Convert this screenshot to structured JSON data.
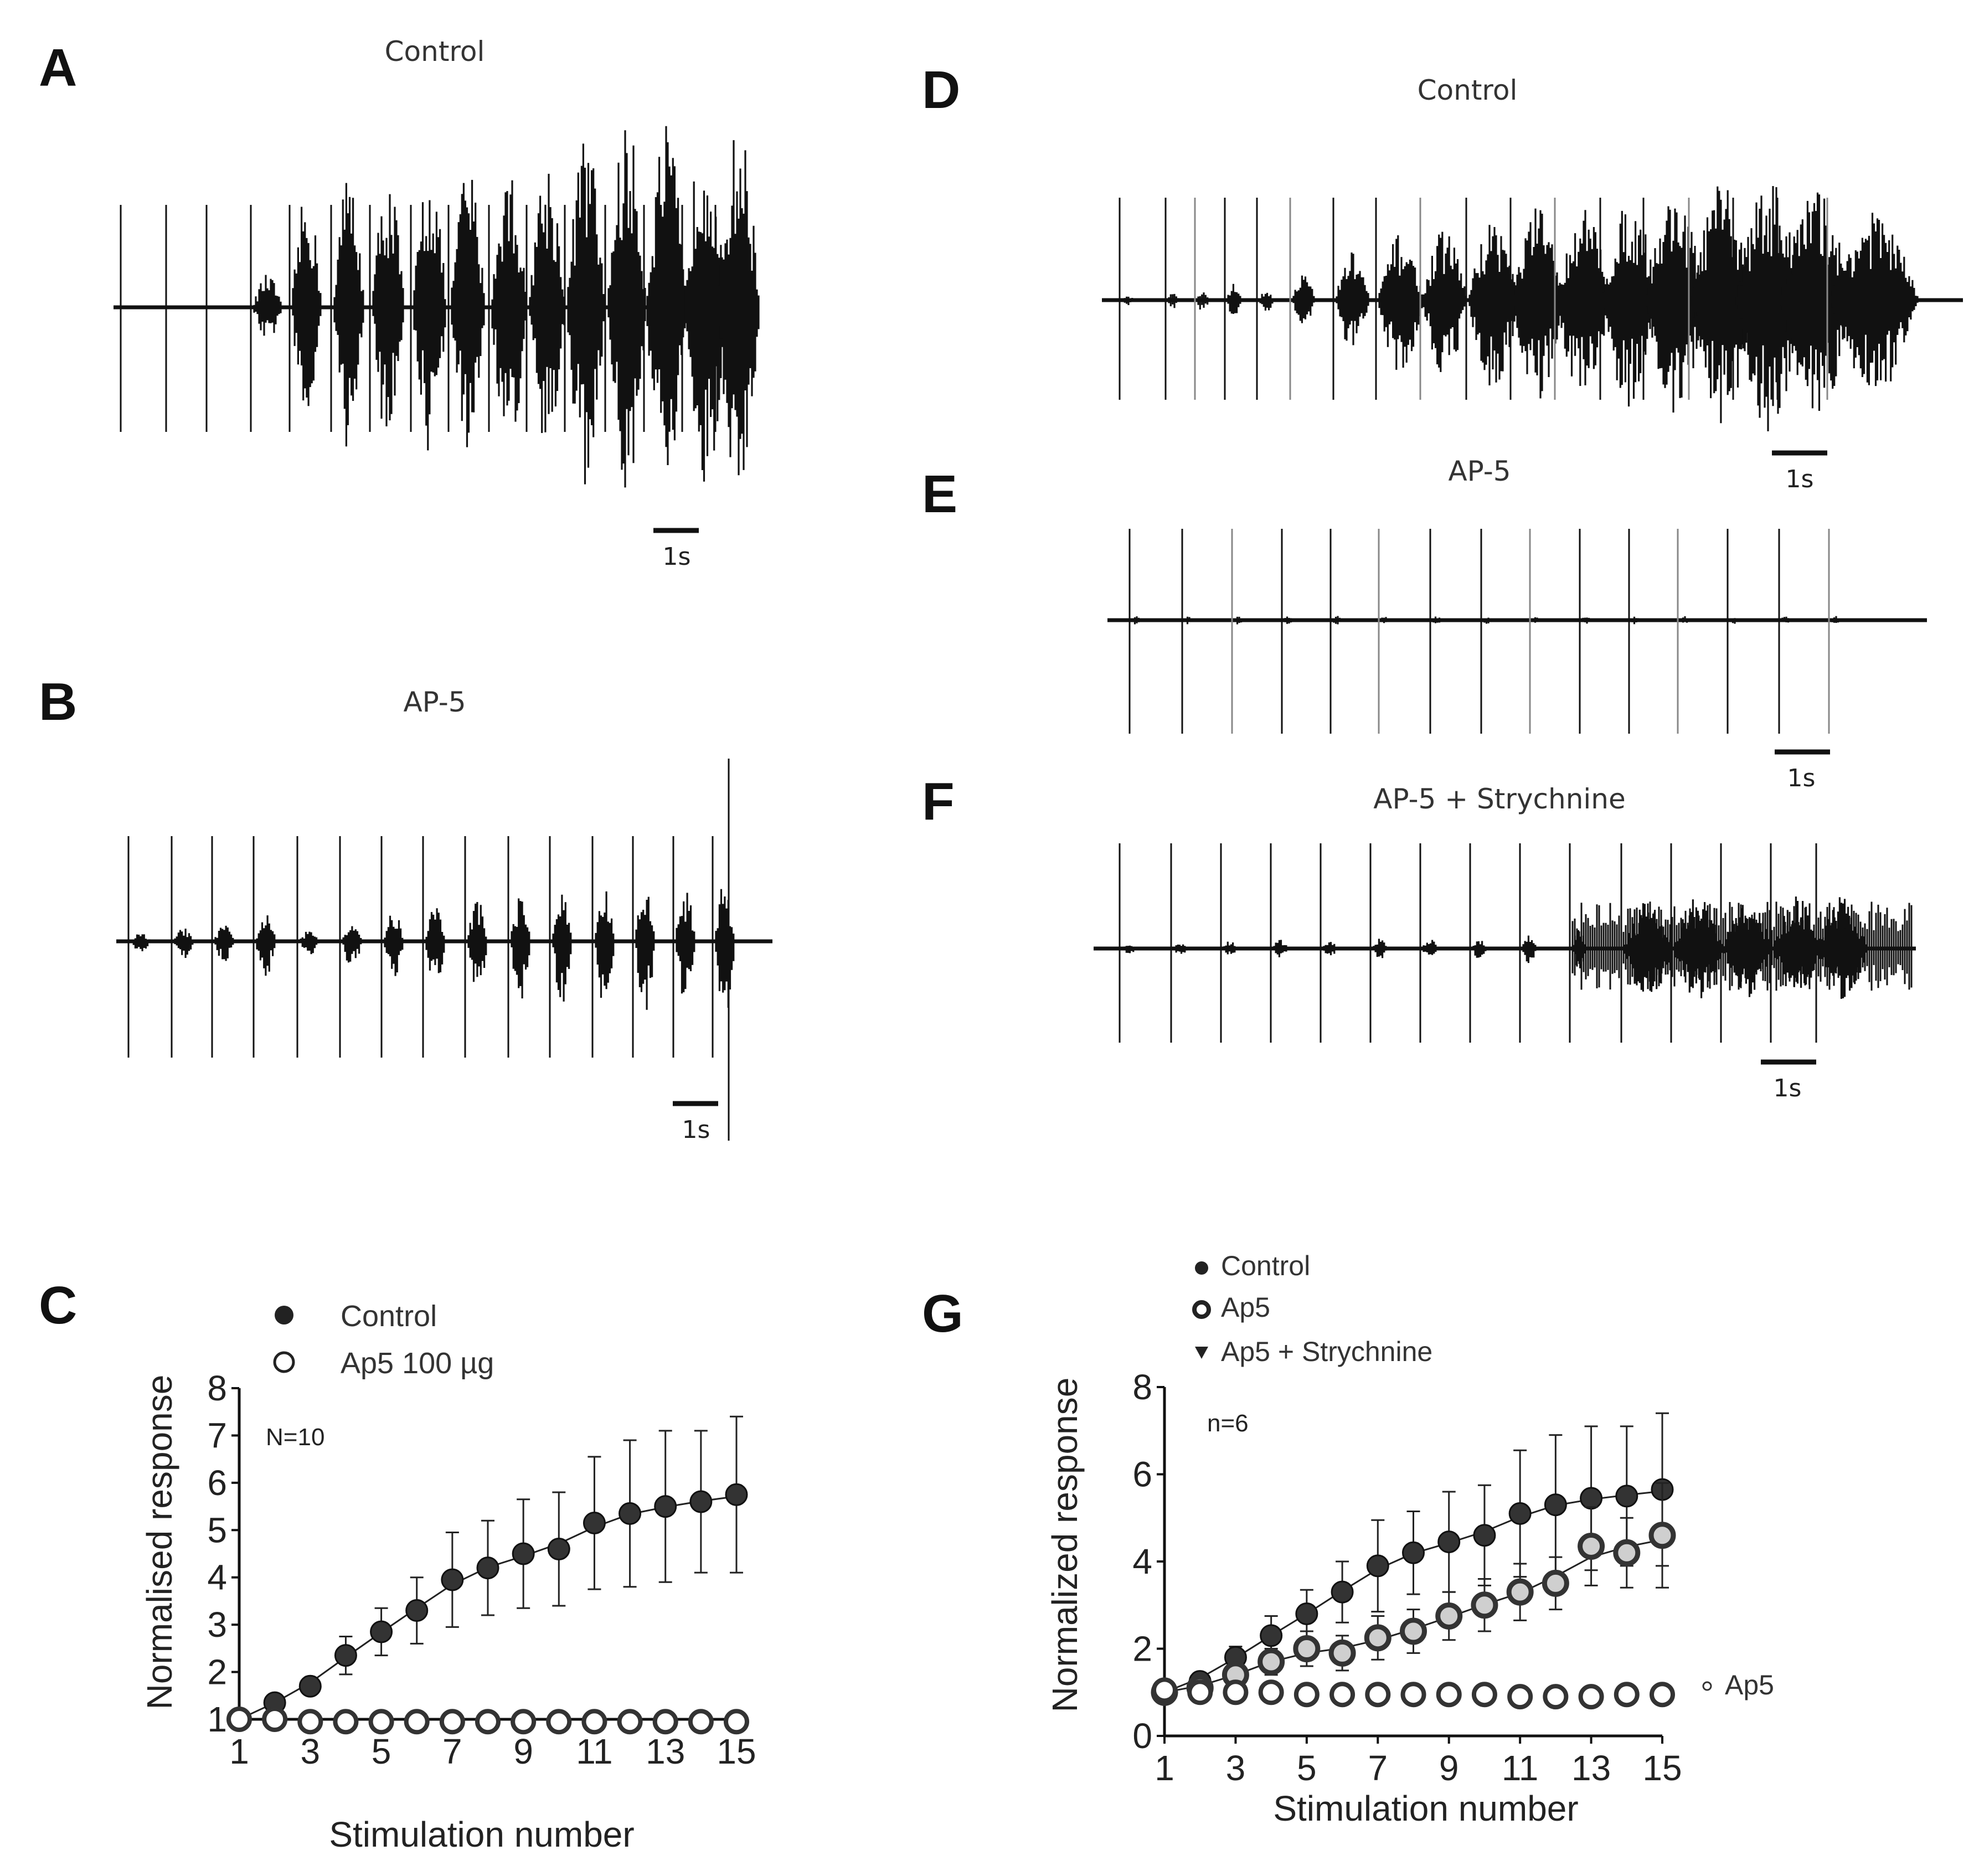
{
  "panels": {
    "A": {
      "letter": "A",
      "title": "Control",
      "scale": "1s"
    },
    "B": {
      "letter": "B",
      "title": "AP-5",
      "scale": "1s"
    },
    "D": {
      "letter": "D",
      "title": "Control",
      "scale": "1s"
    },
    "E": {
      "letter": "E",
      "title": "AP-5",
      "scale": "1s"
    },
    "F": {
      "letter": "F",
      "title": "AP-5 + Strychnine",
      "scale": "1s"
    },
    "C": {
      "letter": "C"
    },
    "G": {
      "letter": "G"
    }
  },
  "colors": {
    "ink": "#111111",
    "marker_fill": "#333333",
    "open_marker_fill": "#ffffff",
    "gray_marker_fill": "#cfcfcf"
  },
  "chart_data": [
    {
      "id": "C",
      "type": "scatter",
      "title": "",
      "xlabel": "Stimulation number",
      "ylabel": "Normalised response",
      "xlim": [
        1,
        15
      ],
      "ylim": [
        1,
        8
      ],
      "xticks": [
        "1",
        "3",
        "5",
        "7",
        "9",
        "11",
        "13",
        "15"
      ],
      "yticks": [
        "1",
        "2",
        "3",
        "4",
        "5",
        "6",
        "7",
        "8"
      ],
      "annotation": "N=10",
      "legend": {
        "position": "top",
        "entries": [
          {
            "label": "Control",
            "marker": "filled-circle"
          },
          {
            "label": "Ap5 100 µg",
            "marker": "open-circle"
          }
        ]
      },
      "series": [
        {
          "name": "Control",
          "marker": "filled-circle",
          "fit_curve": true,
          "x": [
            1,
            2,
            3,
            4,
            5,
            6,
            7,
            8,
            9,
            10,
            11,
            12,
            13,
            14,
            15
          ],
          "values": [
            1.0,
            1.35,
            1.7,
            2.35,
            2.85,
            3.3,
            3.95,
            4.2,
            4.5,
            4.6,
            5.15,
            5.35,
            5.5,
            5.6,
            5.75
          ],
          "error": [
            0,
            0.1,
            0.15,
            0.4,
            0.5,
            0.7,
            1.0,
            1.0,
            1.15,
            1.2,
            1.4,
            1.55,
            1.6,
            1.5,
            1.65
          ]
        },
        {
          "name": "Ap5 100 µg",
          "marker": "open-circle",
          "x": [
            1,
            2,
            3,
            4,
            5,
            6,
            7,
            8,
            9,
            10,
            11,
            12,
            13,
            14,
            15
          ],
          "values": [
            1.0,
            1.0,
            0.95,
            0.95,
            0.95,
            0.95,
            0.95,
            0.95,
            0.95,
            0.95,
            0.95,
            0.95,
            0.95,
            0.95,
            0.95
          ],
          "error": [
            0,
            0,
            0,
            0,
            0,
            0,
            0,
            0,
            0,
            0,
            0,
            0,
            0,
            0,
            0
          ]
        }
      ]
    },
    {
      "id": "G",
      "type": "scatter",
      "title": "",
      "xlabel": "Stimulation number",
      "ylabel": "Normalized response",
      "xlim": [
        1,
        15
      ],
      "ylim": [
        0,
        8
      ],
      "xticks": [
        "1",
        "3",
        "5",
        "7",
        "9",
        "11",
        "13",
        "15"
      ],
      "yticks": [
        "0",
        "2",
        "4",
        "6",
        "8"
      ],
      "annotation": "n=6",
      "legend": {
        "position": "top",
        "entries": [
          {
            "label": "Control",
            "marker": "small-filled-circle"
          },
          {
            "label": "Ap5",
            "marker": "small-open-circle"
          },
          {
            "label": "Ap5 + Strychnine",
            "marker": "filled-triangle-down"
          }
        ]
      },
      "series_label": "Ap5",
      "series": [
        {
          "name": "Control",
          "marker": "filled-circle",
          "fit_curve": true,
          "x": [
            1,
            2,
            3,
            4,
            5,
            6,
            7,
            8,
            9,
            10,
            11,
            12,
            13,
            14,
            15
          ],
          "values": [
            1.0,
            1.25,
            1.8,
            2.3,
            2.8,
            3.3,
            3.9,
            4.2,
            4.45,
            4.6,
            5.1,
            5.3,
            5.45,
            5.5,
            5.65
          ],
          "error": [
            0,
            0.15,
            0.25,
            0.45,
            0.55,
            0.7,
            1.05,
            0.95,
            1.15,
            1.15,
            1.45,
            1.6,
            1.65,
            1.6,
            1.75
          ]
        },
        {
          "name": "Ap5 + Strychnine",
          "marker": "gray-circle",
          "fit_curve": true,
          "x": [
            1,
            2,
            3,
            4,
            5,
            6,
            7,
            8,
            9,
            10,
            11,
            12,
            13,
            14,
            15
          ],
          "values": [
            1.0,
            1.1,
            1.4,
            1.7,
            2.0,
            1.9,
            2.25,
            2.4,
            2.75,
            3.0,
            3.3,
            3.5,
            4.35,
            4.2,
            4.6
          ],
          "error": [
            0,
            0.1,
            0.2,
            0.3,
            0.4,
            0.4,
            0.5,
            0.5,
            0.55,
            0.6,
            0.65,
            0.6,
            0.9,
            0.8,
            1.2
          ]
        },
        {
          "name": "Ap5",
          "marker": "open-circle",
          "x": [
            1,
            2,
            3,
            4,
            5,
            6,
            7,
            8,
            9,
            10,
            11,
            12,
            13,
            14,
            15
          ],
          "values": [
            1.05,
            1.0,
            1.0,
            1.0,
            0.95,
            0.95,
            0.95,
            0.95,
            0.95,
            0.95,
            0.9,
            0.9,
            0.9,
            0.95,
            0.95
          ],
          "error": [
            0,
            0,
            0,
            0,
            0,
            0,
            0,
            0,
            0,
            0,
            0,
            0,
            0,
            0,
            0
          ]
        }
      ]
    }
  ]
}
